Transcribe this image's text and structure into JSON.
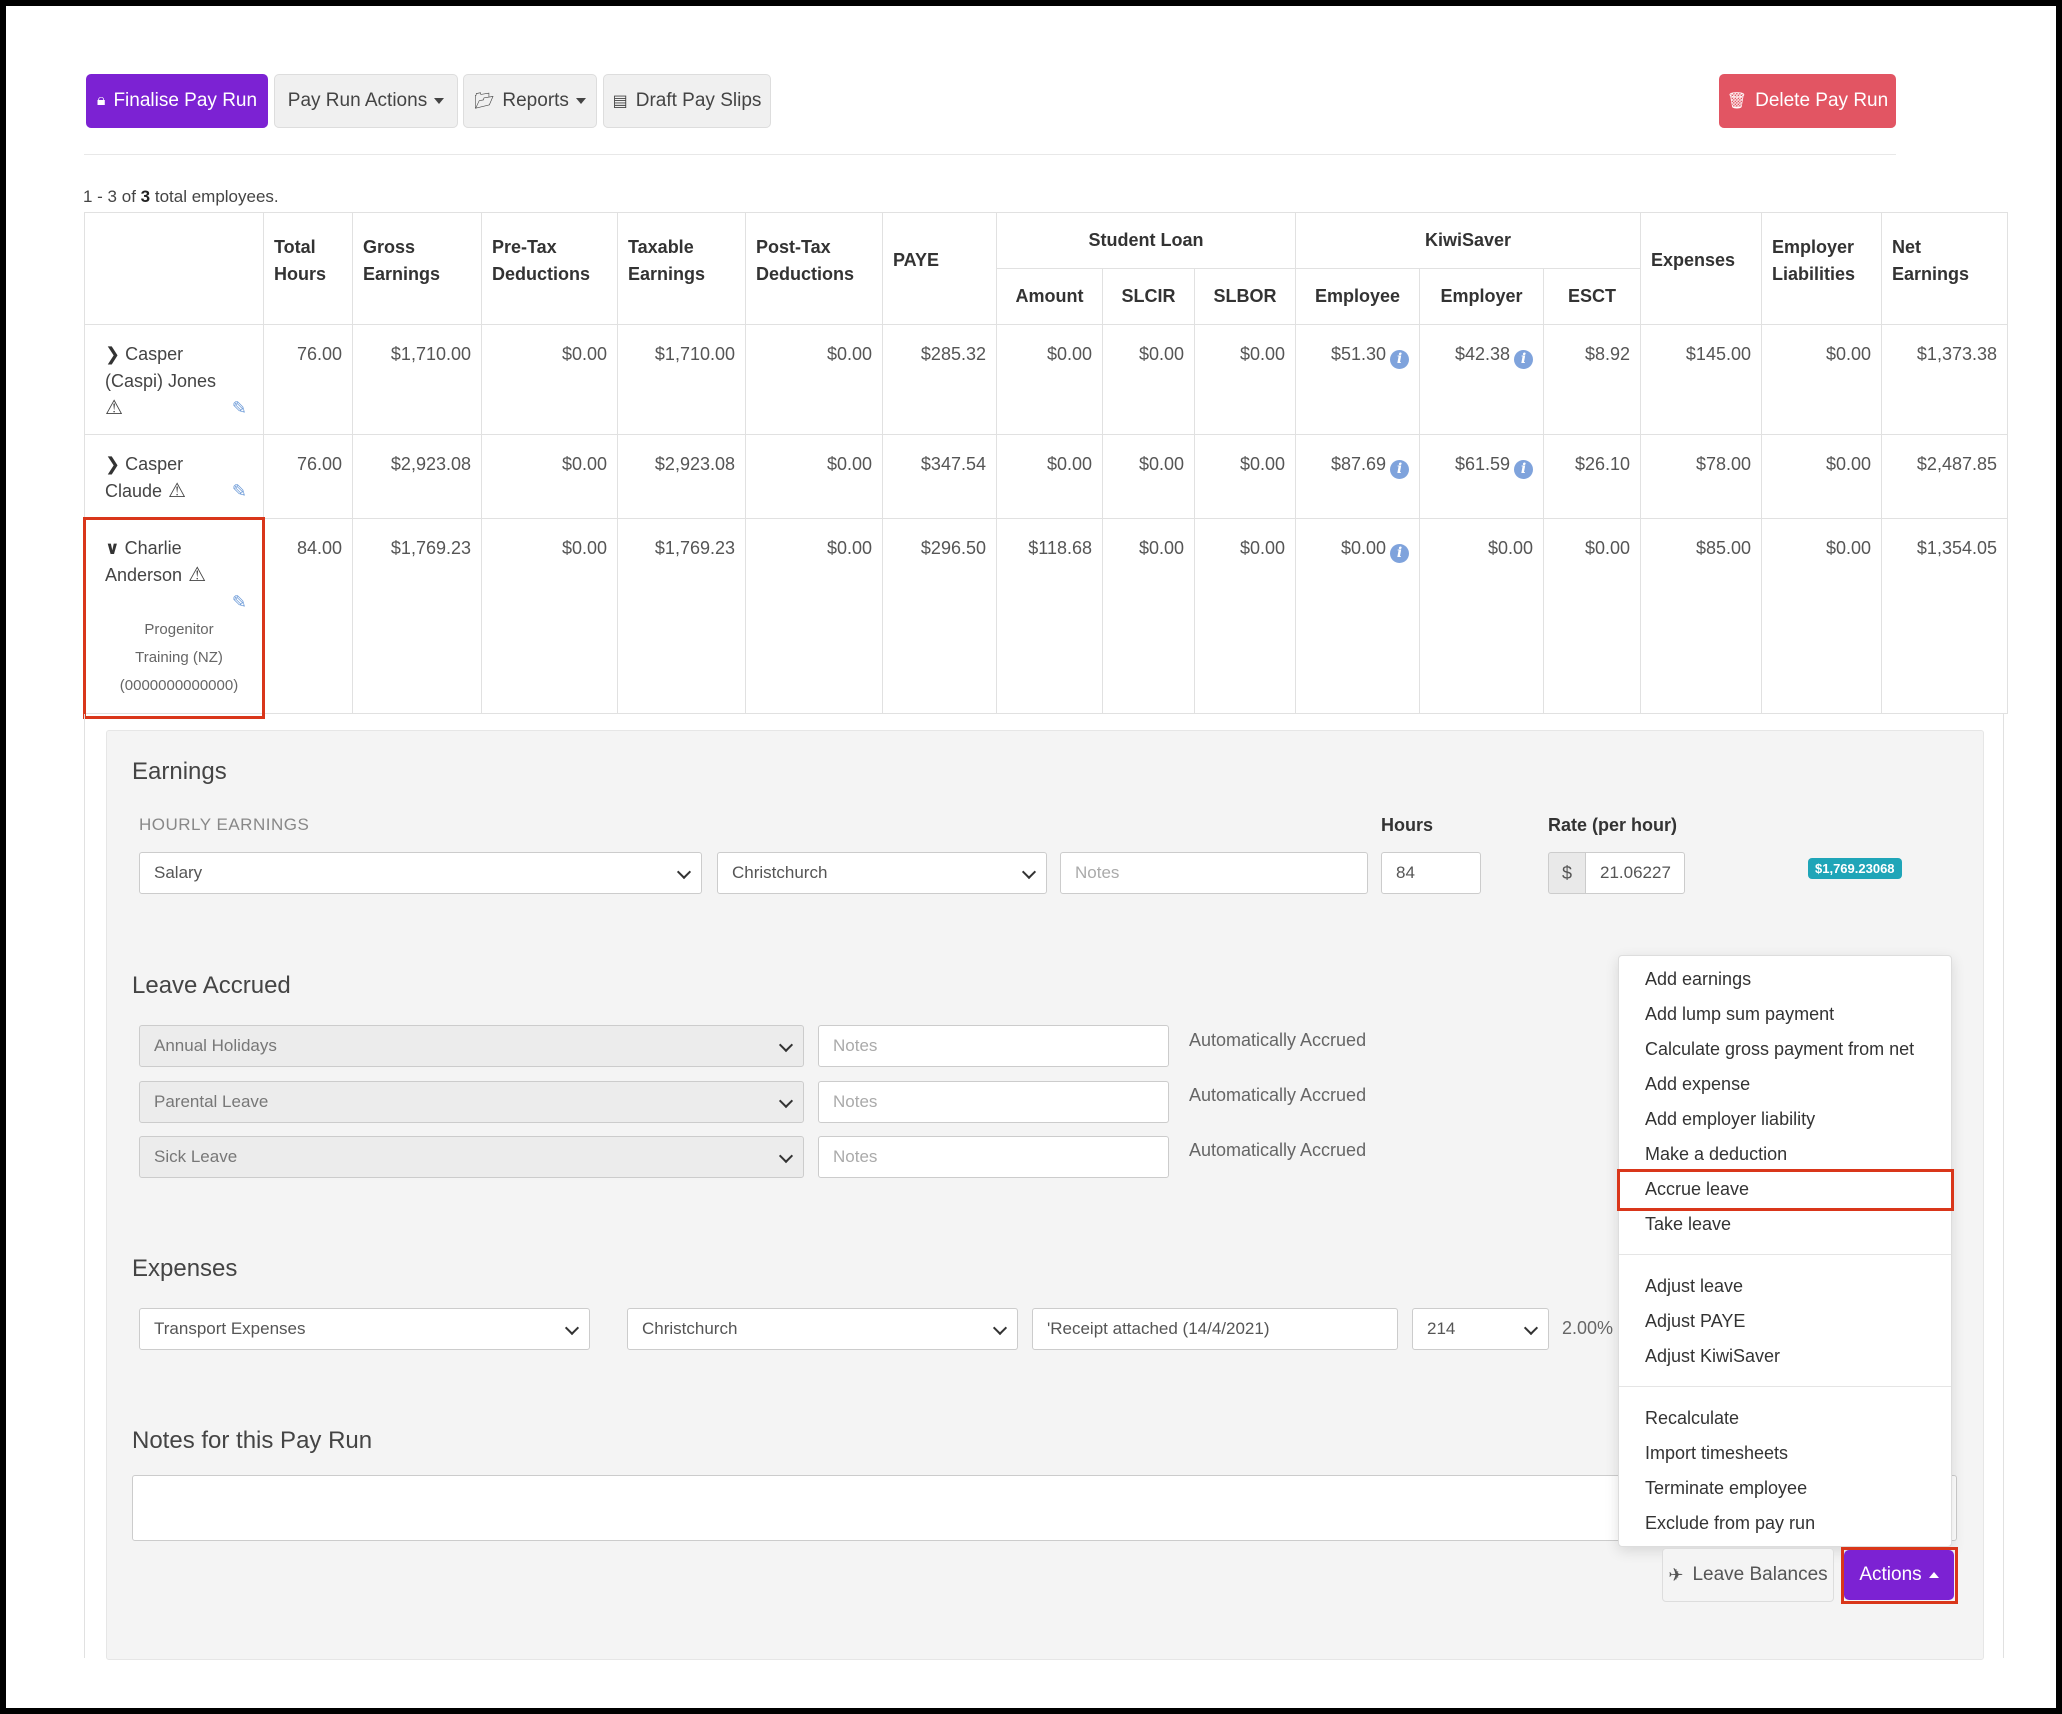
{
  "toolbar": {
    "finalise": "Finalise Pay Run",
    "pay_run_actions": "Pay Run Actions",
    "reports": "Reports",
    "draft_pay_slips": "Draft Pay Slips",
    "delete": "Delete Pay Run"
  },
  "summary": {
    "prefix": "1 - 3 of",
    "total": "3",
    "suffix": "total employees."
  },
  "table": {
    "group_headers": {
      "student_loan": "Student Loan",
      "kiwisaver": "KiwiSaver"
    },
    "columns": {
      "total_hours": [
        "Total",
        "Hours"
      ],
      "gross_earnings": [
        "Gross",
        "Earnings"
      ],
      "pre_tax": [
        "Pre-Tax",
        "Deductions"
      ],
      "taxable": [
        "Taxable",
        "Earnings"
      ],
      "post_tax": [
        "Post-Tax",
        "Deductions"
      ],
      "paye": "PAYE",
      "amount": "Amount",
      "slcir": "SLCIR",
      "slbor": "SLBOR",
      "employee": "Employee",
      "employer": "Employer",
      "esct": "ESCT",
      "expenses": "Expenses",
      "employer_liabilities": [
        "Employer",
        "Liabilities"
      ],
      "net_earnings": [
        "Net",
        "Earnings"
      ]
    },
    "rows": [
      {
        "name_line1": "Casper",
        "name_line2": "(Caspi) Jones",
        "values": [
          "76.00",
          "$1,710.00",
          "$0.00",
          "$1,710.00",
          "$0.00",
          "$285.32",
          "$0.00",
          "$0.00",
          "$0.00",
          "$51.30",
          "$42.38",
          "$8.92",
          "$145.00",
          "$0.00",
          "$1,373.38"
        ]
      },
      {
        "name_line1": "Casper",
        "name_line2": "Claude",
        "values": [
          "76.00",
          "$2,923.08",
          "$0.00",
          "$2,923.08",
          "$0.00",
          "$347.54",
          "$0.00",
          "$0.00",
          "$0.00",
          "$87.69",
          "$61.59",
          "$26.10",
          "$78.00",
          "$0.00",
          "$2,487.85"
        ]
      },
      {
        "name_line1": "Charlie",
        "name_line2": "Anderson",
        "org_line1": "Progenitor",
        "org_line2": "Training (NZ)",
        "org_line3": "(0000000000000)",
        "values": [
          "84.00",
          "$1,769.23",
          "$0.00",
          "$1,769.23",
          "$0.00",
          "$296.50",
          "$118.68",
          "$0.00",
          "$0.00",
          "$0.00",
          "$0.00",
          "$0.00",
          "$85.00",
          "$0.00",
          "$1,354.05"
        ]
      }
    ]
  },
  "earnings": {
    "title": "Earnings",
    "subtitle": "HOURLY EARNINGS",
    "hours_label": "Hours",
    "rate_label": "Rate (per hour)",
    "type": "Salary",
    "location": "Christchurch",
    "notes_placeholder": "Notes",
    "hours": "84",
    "currency": "$",
    "rate": "21.06227",
    "total_badge": "$1,769.23068"
  },
  "leave": {
    "title": "Leave Accrued",
    "notes_placeholder": "Notes",
    "items": [
      {
        "type": "Annual Holidays",
        "status": "Automatically Accrued"
      },
      {
        "type": "Parental Leave",
        "status": "Automatically Accrued"
      },
      {
        "type": "Sick Leave",
        "status": "Automatically Accrued"
      }
    ]
  },
  "expenses": {
    "title": "Expenses",
    "type": "Transport Expenses",
    "location": "Christchurch",
    "notes": "'Receipt attached (14/4/2021)",
    "code": "214",
    "rate": "2.00%"
  },
  "notes": {
    "title": "Notes for this Pay Run"
  },
  "actions_menu": {
    "group1": [
      "Add earnings",
      "Add lump sum payment",
      "Calculate gross payment from net",
      "Add expense",
      "Add employer liability",
      "Make a deduction",
      "Accrue leave",
      "Take leave"
    ],
    "group2": [
      "Adjust leave",
      "Adjust PAYE",
      "Adjust KiwiSaver"
    ],
    "group3": [
      "Recalculate",
      "Import timesheets",
      "Terminate employee",
      "Exclude from pay run"
    ]
  },
  "footer": {
    "leave_balances": "Leave Balances",
    "actions": "Actions"
  },
  "colors": {
    "primary": "#7c22d3",
    "danger": "#e25563",
    "highlight": "#d9361a",
    "badge": "#1fa5b8"
  }
}
